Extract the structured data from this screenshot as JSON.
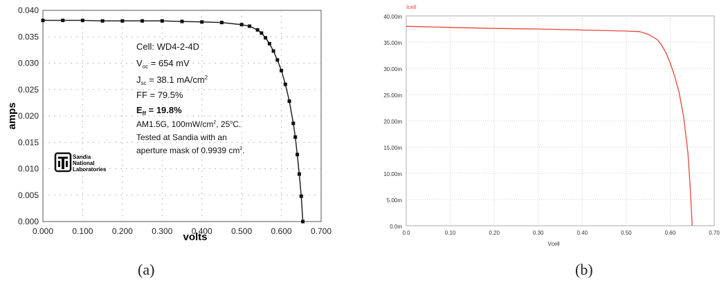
{
  "chart_data": [
    {
      "type": "line",
      "panel_label": "(a)",
      "xlabel": "volts",
      "ylabel": "amps",
      "xlim": [
        0,
        0.7
      ],
      "ylim": [
        0,
        0.04
      ],
      "x_ticks": [
        "0.000",
        "0.100",
        "0.200",
        "0.300",
        "0.400",
        "0.500",
        "0.600",
        "0.700"
      ],
      "y_ticks": [
        "0.000",
        "0.005",
        "0.010",
        "0.015",
        "0.020",
        "0.025",
        "0.030",
        "0.035",
        "0.040"
      ],
      "grid": true,
      "marker": "square",
      "series": [
        {
          "x": [
            0,
            0.05,
            0.1,
            0.15,
            0.2,
            0.25,
            0.3,
            0.35,
            0.4,
            0.45,
            0.5,
            0.52,
            0.54,
            0.55,
            0.56,
            0.57,
            0.58,
            0.59,
            0.6,
            0.61,
            0.62,
            0.63,
            0.635,
            0.64,
            0.645,
            0.65,
            0.654
          ],
          "y": [
            0.0381,
            0.0381,
            0.0381,
            0.038,
            0.038,
            0.038,
            0.038,
            0.0379,
            0.0378,
            0.0377,
            0.0373,
            0.037,
            0.0363,
            0.0357,
            0.0348,
            0.0337,
            0.0323,
            0.0306,
            0.0286,
            0.026,
            0.0228,
            0.0186,
            0.016,
            0.0127,
            0.009,
            0.0048,
            0.0
          ]
        }
      ],
      "annotation": {
        "cell": "Cell: WD4-2-4D",
        "voc_prefix": "V",
        "voc_sub": "oc",
        "voc_value": " = 654 mV",
        "jsc_prefix": "J",
        "jsc_sub": "sc",
        "jsc_value": " = 38.1 mA/cm",
        "jsc_sup": "2",
        "ff": "FF = 79.5%",
        "eff_prefix": "E",
        "eff_sub": "ff",
        "eff_value": " = 19.8%",
        "cond_pre": "AM1.5G, 100mW/cm",
        "cond_sup1": "2",
        "cond_mid": ", 25",
        "cond_sup2": "o",
        "cond_post": "C.",
        "tested": "Tested at Sandia with an",
        "aperture_pre": "aperture mask of 0.9939 cm",
        "aperture_sup": "2",
        "aperture_post": "."
      },
      "logo": {
        "icon": "sandia-logo-icon",
        "lines": [
          "Sandia",
          "National",
          "Laboratories"
        ]
      }
    },
    {
      "type": "line",
      "panel_label": "(b)",
      "xlabel": "Vcell",
      "ylabel": "Icell",
      "xlim": [
        0,
        0.7
      ],
      "ylim": [
        0,
        40
      ],
      "x_ticks": [
        "0.0",
        "0.10",
        "0.20",
        "0.30",
        "0.40",
        "0.50",
        "0.60",
        "0.70"
      ],
      "y_ticks": [
        "0.0m",
        "5.00m",
        "10.00m",
        "15.00m",
        "20.00m",
        "25.00m",
        "30.00m",
        "35.00m",
        "40.00m"
      ],
      "grid": true,
      "series": [
        {
          "color": "#e8443a",
          "x": [
            0,
            0.1,
            0.2,
            0.3,
            0.4,
            0.5,
            0.53,
            0.55,
            0.57,
            0.58,
            0.59,
            0.6,
            0.61,
            0.62,
            0.63,
            0.64,
            0.645,
            0.65
          ],
          "y": [
            38.0,
            37.8,
            37.6,
            37.5,
            37.3,
            37.1,
            37.0,
            36.5,
            35.5,
            34.5,
            33.0,
            31.0,
            28.5,
            25.5,
            21.0,
            14.0,
            8.0,
            0.0
          ]
        }
      ]
    }
  ]
}
